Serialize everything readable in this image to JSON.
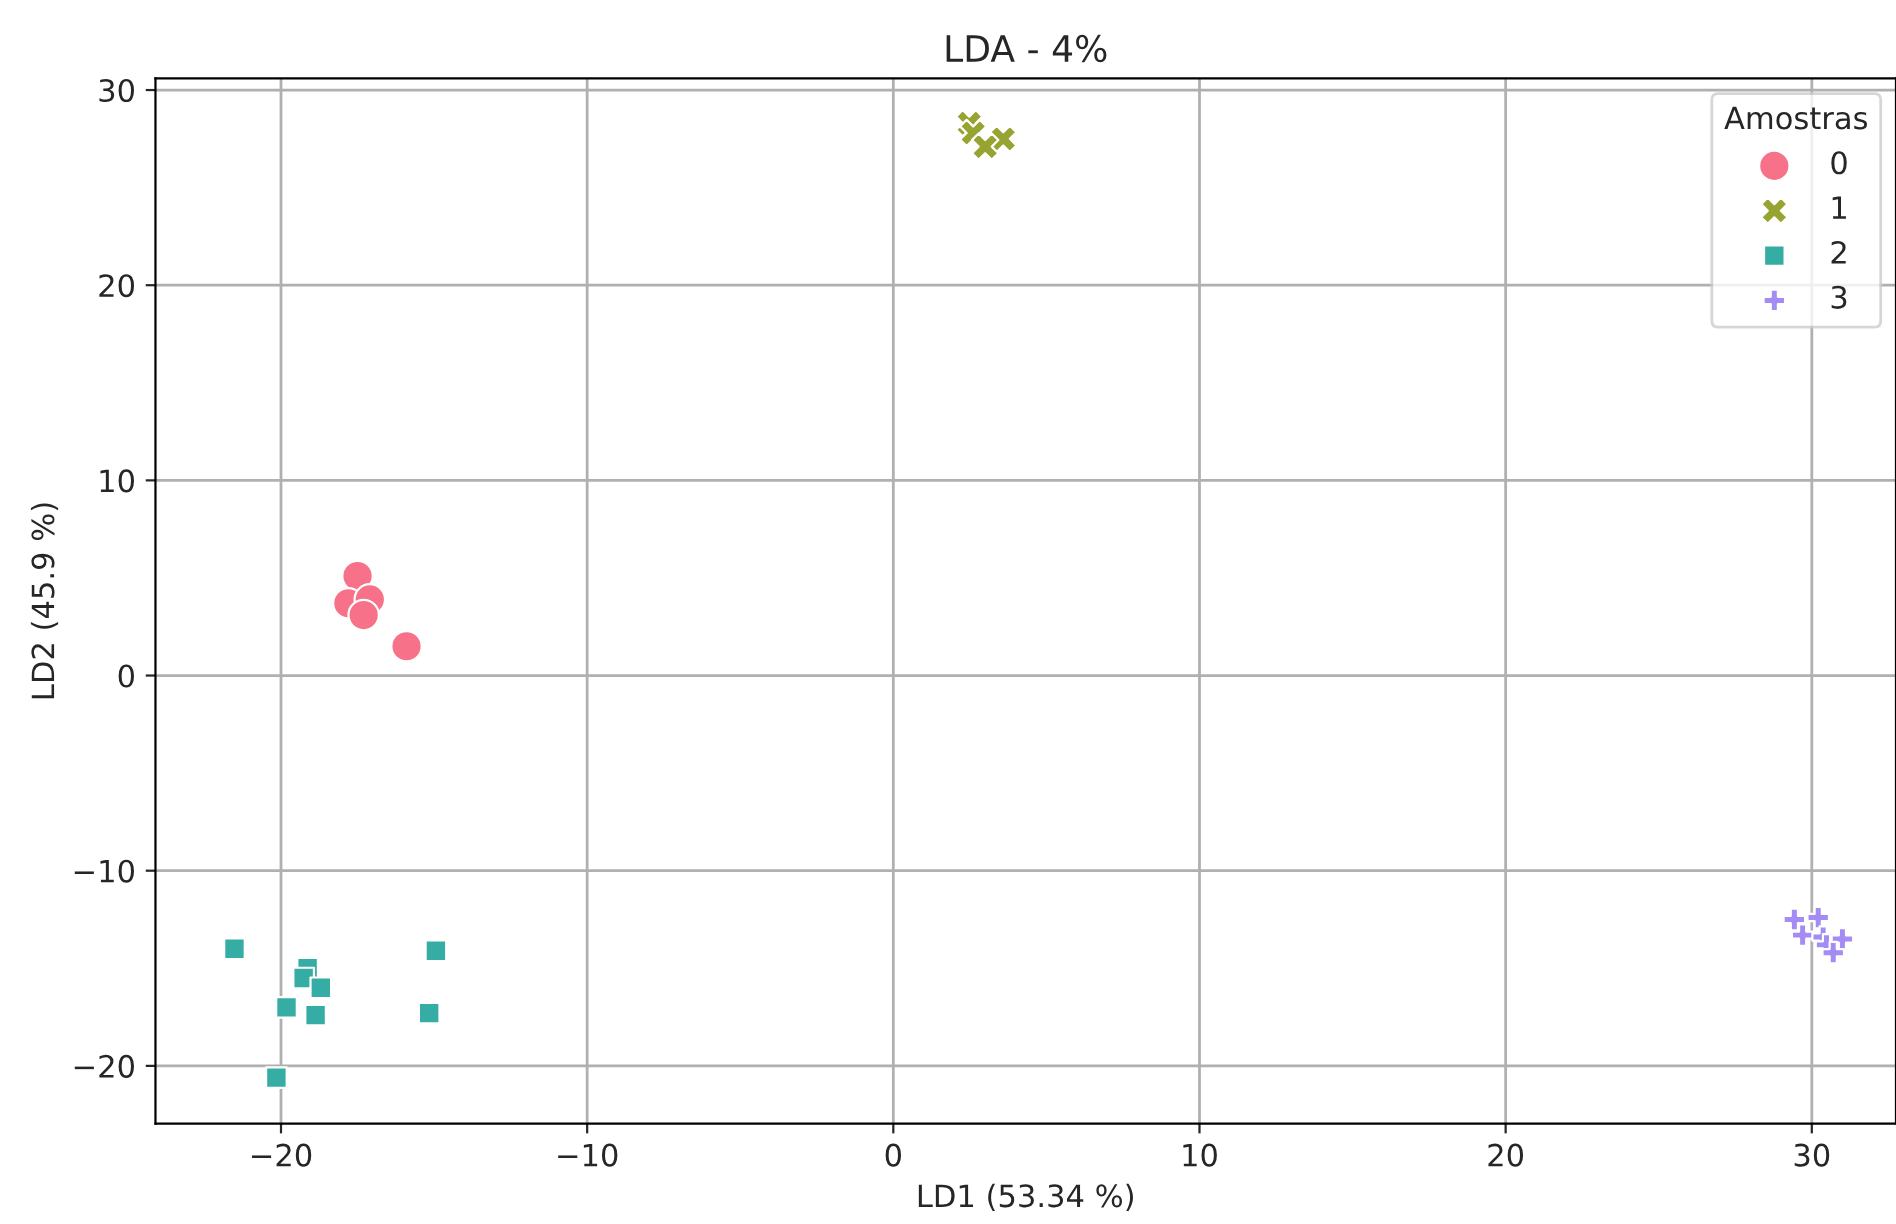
{
  "chart_data": {
    "type": "scatter",
    "title": "LDA - 4%",
    "xlabel": "LD1 (53.34 %)",
    "ylabel": "LD2 (45.9 %)",
    "legend_title": "Amostras",
    "legend": "top right",
    "grid": true,
    "xlim": [
      -24.1,
      32.75
    ],
    "ylim": [
      -22.96,
      30.6
    ],
    "xticks": [
      {
        "value": -20,
        "label": "−20"
      },
      {
        "value": -10,
        "label": "−10"
      },
      0,
      10,
      20,
      30
    ],
    "yticks": [
      {
        "value": -20,
        "label": "−20"
      },
      {
        "value": -10,
        "label": "−10"
      },
      0,
      10,
      20,
      30
    ],
    "series": [
      {
        "name": "0",
        "color": "#f77189",
        "marker": "circle",
        "x": [
          -17.5,
          -17.8,
          -17.1,
          -17.3,
          -15.9
        ],
        "values": [
          5.1,
          3.7,
          3.9,
          3.1,
          1.5
        ]
      },
      {
        "name": "1",
        "color": "#97a431",
        "marker": "cross",
        "x": [
          2.48,
          3.59,
          2.61,
          3.0
        ],
        "values": [
          28.3,
          27.5,
          27.8,
          27.1
        ]
      },
      {
        "name": "2",
        "color": "#36ada4",
        "marker": "square",
        "x": [
          -21.52,
          -19.13,
          -19.26,
          -18.7,
          -19.82,
          -18.87,
          -14.94,
          -15.16,
          -20.15
        ],
        "values": [
          -14.0,
          -15.0,
          -15.5,
          -16.0,
          -17.0,
          -17.4,
          -14.1,
          -17.3,
          -20.6
        ]
      },
      {
        "name": "3",
        "color": "#a48cf4",
        "marker": "plus",
        "x": [
          29.43,
          30.21,
          29.7,
          30.37,
          30.48,
          31.0,
          30.7
        ],
        "values": [
          -12.5,
          -12.4,
          -13.3,
          -13.4,
          -13.8,
          -13.5,
          -14.2
        ]
      }
    ]
  }
}
